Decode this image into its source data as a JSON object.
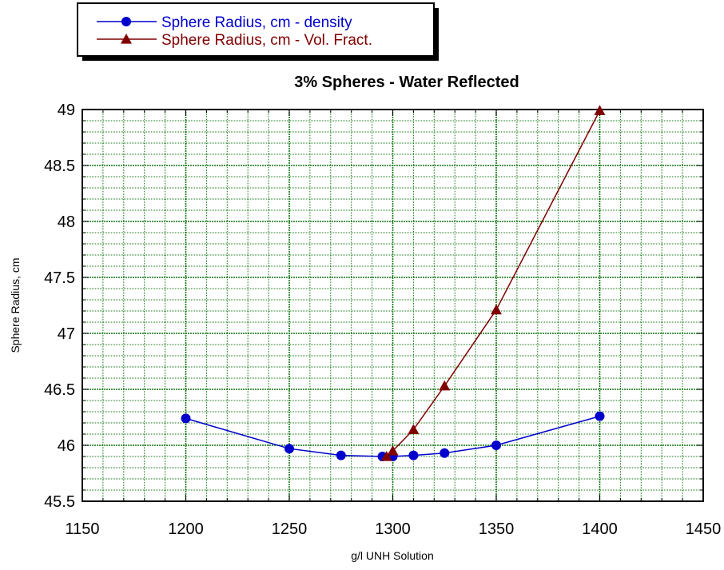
{
  "chart_data": {
    "type": "line",
    "title": "3% Spheres - Water Reflected",
    "xlabel": "g/l  UNH Solution",
    "ylabel": "Sphere Radius, cm",
    "xlim": [
      1150,
      1450
    ],
    "ylim": [
      45.5,
      49
    ],
    "x_ticks": [
      1150,
      1200,
      1250,
      1300,
      1350,
      1400,
      1450
    ],
    "y_ticks": [
      45.5,
      46,
      46.5,
      47,
      47.5,
      48,
      48.5,
      49
    ],
    "x_tick_labels": [
      "1150",
      "1200",
      "1250",
      "1300",
      "1350",
      "1400",
      "1450"
    ],
    "y_tick_labels": [
      "45.5",
      "46",
      "46.5",
      "47",
      "47.5",
      "48",
      "48.5",
      "49"
    ],
    "grid": true,
    "legend_position": "top-left",
    "series": [
      {
        "name": "Sphere Radius, cm - density",
        "marker": "circle",
        "color": "#0000cc",
        "x": [
          1200,
          1250,
          1275,
          1295,
          1300,
          1310,
          1325,
          1350,
          1400
        ],
        "y": [
          46.24,
          45.97,
          45.91,
          45.9,
          45.9,
          45.91,
          45.93,
          46.0,
          46.26
        ]
      },
      {
        "name": "Sphere Radius, cm - Vol. Fract.",
        "marker": "triangle",
        "color": "#800000",
        "x": [
          1297,
          1300,
          1310,
          1325,
          1350,
          1400
        ],
        "y": [
          45.9,
          45.95,
          46.14,
          46.53,
          47.21,
          48.99
        ]
      }
    ]
  },
  "colors": {
    "grid": "#117711",
    "frame": "#000000",
    "background": "#ffffff"
  }
}
